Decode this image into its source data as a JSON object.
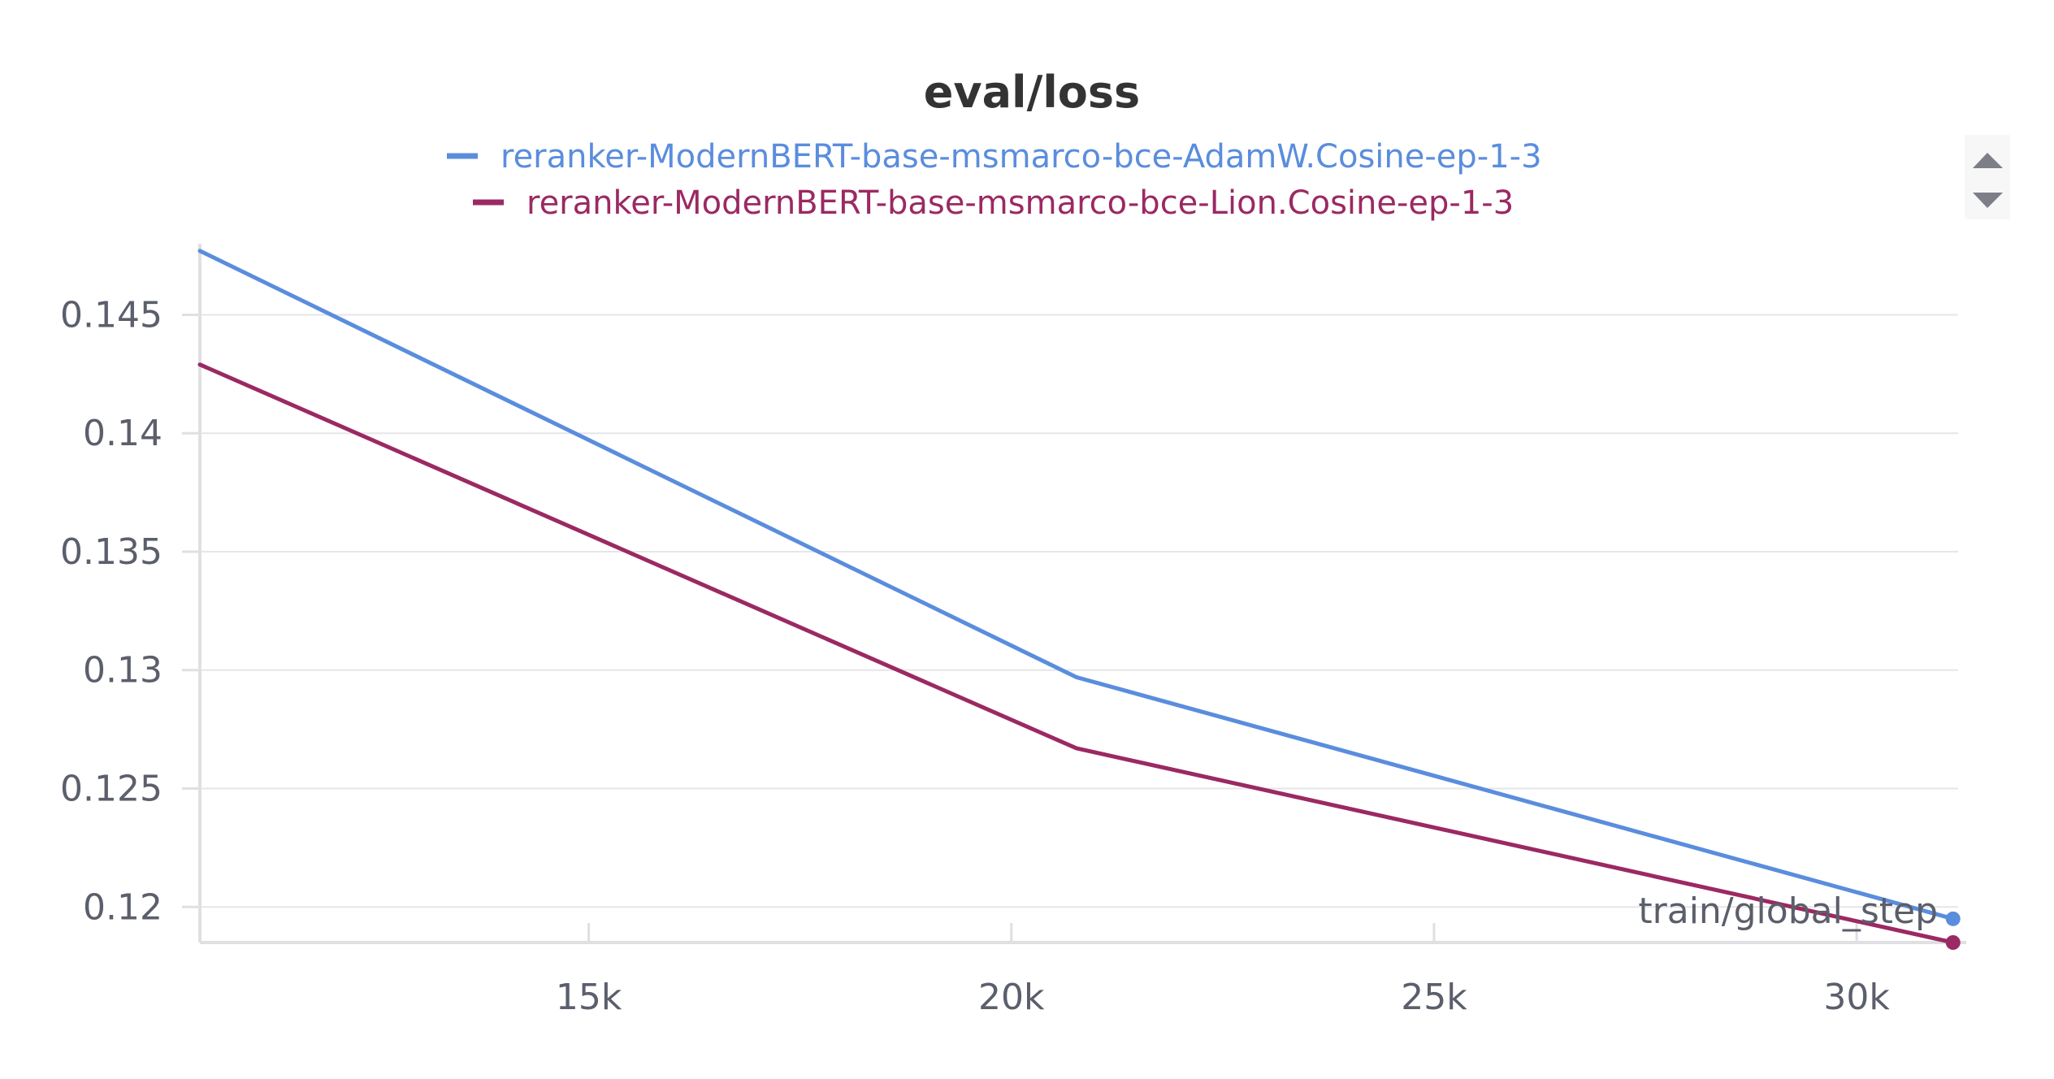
{
  "chart_data": {
    "type": "line",
    "title": "eval/loss",
    "xlabel": "train/global_step",
    "ylabel": "",
    "xlim": [
      10400,
      31200
    ],
    "ylim": [
      0.1185,
      0.148
    ],
    "x_ticks": [
      15000,
      20000,
      25000,
      30000
    ],
    "x_tick_labels": [
      "15k",
      "20k",
      "25k",
      "30k"
    ],
    "y_ticks": [
      0.12,
      0.125,
      0.13,
      0.135,
      0.14,
      0.145
    ],
    "y_tick_labels": [
      "0.12",
      "0.125",
      "0.13",
      "0.135",
      "0.14",
      "0.145"
    ],
    "grid": true,
    "legend_position": "top-center",
    "series": [
      {
        "name": "reranker-ModernBERT-base-msmarco-bce-AdamW.Cosine-ep-1-3",
        "color": "#5a8ddd",
        "x": [
          10400,
          20770,
          31140
        ],
        "values": [
          0.1477,
          0.1297,
          0.1195
        ]
      },
      {
        "name": "reranker-ModernBERT-base-msmarco-bce-Lion.Cosine-ep-1-3",
        "color": "#9b2963",
        "x": [
          10400,
          20770,
          31140
        ],
        "values": [
          0.1429,
          0.1267,
          0.1185
        ]
      }
    ]
  },
  "legend_controls": {
    "up_icon": "triangle-up-icon",
    "down_icon": "triangle-down-icon"
  }
}
